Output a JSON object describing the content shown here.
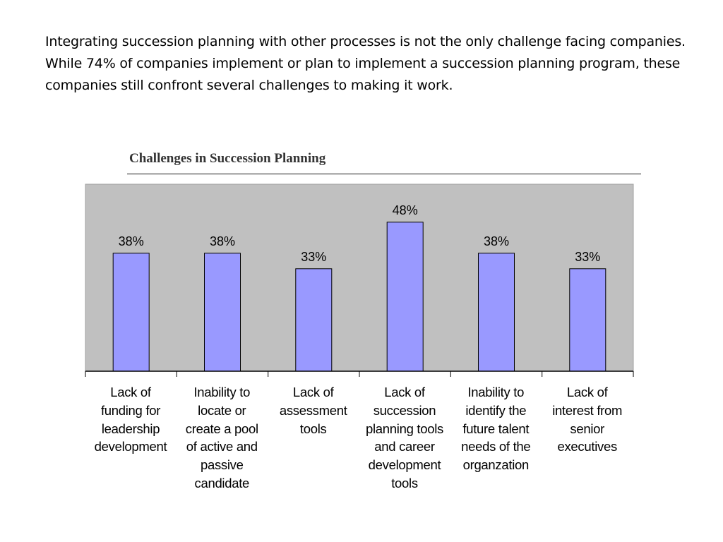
{
  "intro_text": "Integrating succession planning with other processes is not the only challenge facing companies. While 74% of companies implement or plan to implement a succession planning program, these companies still confront several challenges to making it work.",
  "colors": {
    "plot_background": "#c0c0c0",
    "bar_fill": "#9999ff",
    "bar_stroke": "#000000",
    "axis": "#000000"
  },
  "chart_data": {
    "type": "bar",
    "title": "Challenges in Succession Planning",
    "xlabel": "",
    "ylabel": "",
    "ylim": [
      0,
      60
    ],
    "grid": false,
    "legend": "none",
    "categories": [
      "Lack of\nfunding for\nleadership\ndevelopment",
      "Inability to\nlocate or\ncreate a pool\nof active and\npassive\ncandidate",
      "Lack of\nassessment\ntools",
      "Lack of\nsuccession\nplanning tools\nand career\ndevelopment\ntools",
      "Inability to\nidentify the\nfuture talent\nneeds of the\norganzation",
      "Lack of\ninterest from\nsenior\nexecutives"
    ],
    "values": [
      38,
      38,
      33,
      48,
      38,
      33
    ],
    "data_labels": [
      "38%",
      "38%",
      "33%",
      "48%",
      "38%",
      "33%"
    ]
  }
}
